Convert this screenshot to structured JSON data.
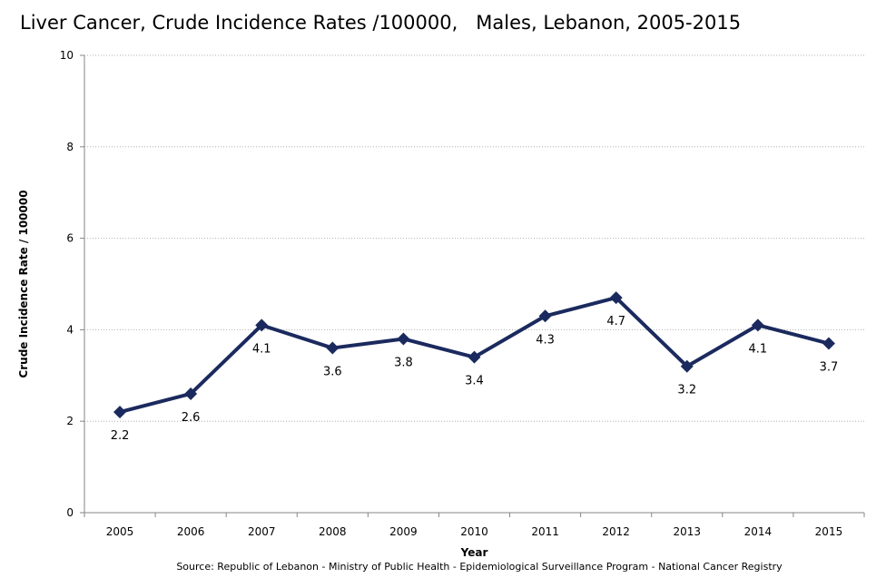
{
  "chart_data": {
    "type": "line",
    "title": "Liver Cancer, Crude Incidence Rates /100000,   Males, Lebanon, 2005-2015",
    "xlabel": "Year",
    "ylabel": "Crude Incidence Rate / 100000",
    "categories": [
      "2005",
      "2006",
      "2007",
      "2008",
      "2009",
      "2010",
      "2011",
      "2012",
      "2013",
      "2014",
      "2015"
    ],
    "series": [
      {
        "name": "Males",
        "values": [
          2.2,
          2.6,
          4.1,
          3.6,
          3.8,
          3.4,
          4.3,
          4.7,
          3.2,
          4.1,
          3.7
        ],
        "color": "#1b2a5e"
      }
    ],
    "data_labels": [
      "2.2",
      "2.6",
      "4.1",
      "3.6",
      "3.8",
      "3.4",
      "4.3",
      "4.7",
      "3.2",
      "4.1",
      "3.7"
    ],
    "ylim": [
      0,
      10
    ],
    "yticks": [
      0,
      2,
      4,
      6,
      8,
      10
    ],
    "grid": true,
    "legend": "none"
  },
  "source": "Source:  Republic of Lebanon - Ministry of Public Health - Epidemiological Surveillance Program - National Cancer Registry"
}
